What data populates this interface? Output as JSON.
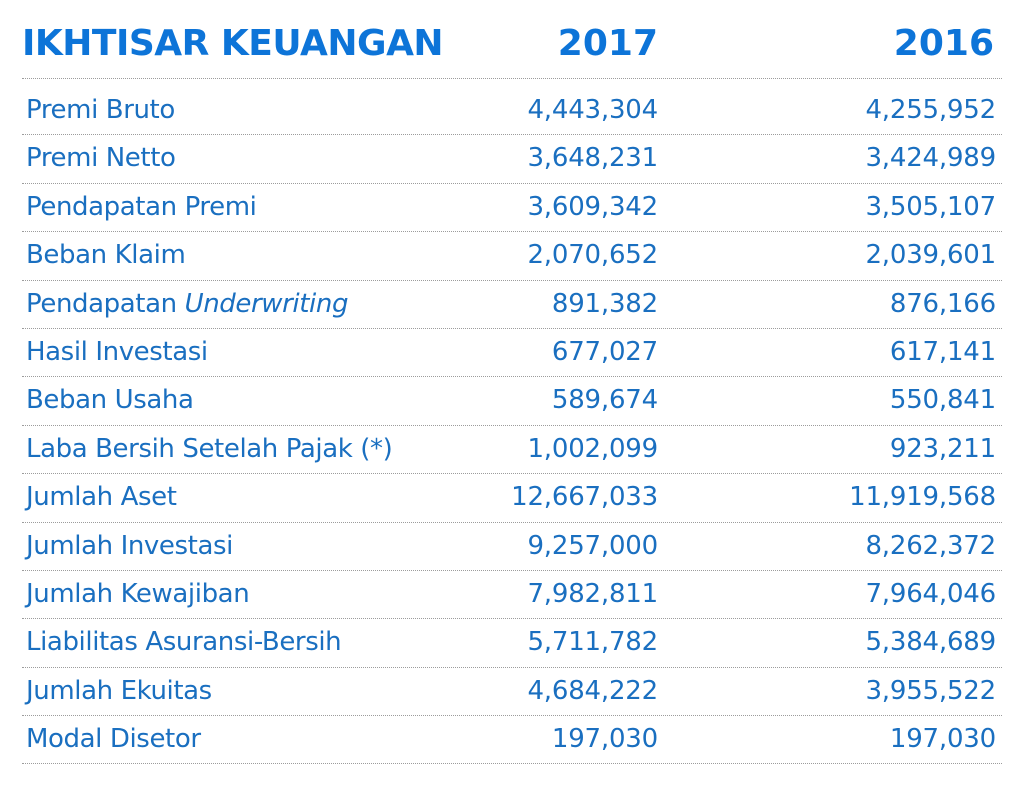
{
  "header": {
    "title": "IKHTISAR KEUANGAN",
    "year_1": "2017",
    "year_2": "2016"
  },
  "rows": [
    {
      "label": "Premi Bruto",
      "label_italic": "",
      "v2017": "4,443,304",
      "v2016": "4,255,952"
    },
    {
      "label": "Premi Netto",
      "label_italic": "",
      "v2017": "3,648,231",
      "v2016": "3,424,989"
    },
    {
      "label": "Pendapatan Premi",
      "label_italic": "",
      "v2017": "3,609,342",
      "v2016": "3,505,107"
    },
    {
      "label": "Beban Klaim",
      "label_italic": "",
      "v2017": "2,070,652",
      "v2016": "2,039,601"
    },
    {
      "label": "Pendapatan ",
      "label_italic": "Underwriting",
      "v2017": "891,382",
      "v2016": "876,166"
    },
    {
      "label": "Hasil Investasi",
      "label_italic": "",
      "v2017": "677,027",
      "v2016": "617,141"
    },
    {
      "label": "Beban Usaha",
      "label_italic": "",
      "v2017": "589,674",
      "v2016": "550,841"
    },
    {
      "label": "Laba Bersih Setelah Pajak (*)",
      "label_italic": "",
      "v2017": "1,002,099",
      "v2016": "923,211"
    },
    {
      "label": "Jumlah Aset",
      "label_italic": "",
      "v2017": "12,667,033",
      "v2016": "11,919,568"
    },
    {
      "label": "Jumlah Investasi",
      "label_italic": "",
      "v2017": "9,257,000",
      "v2016": "8,262,372"
    },
    {
      "label": "Jumlah Kewajiban",
      "label_italic": "",
      "v2017": "7,982,811",
      "v2016": "7,964,046"
    },
    {
      "label": "Liabilitas Asuransi-Bersih",
      "label_italic": "",
      "v2017": "5,711,782",
      "v2016": "5,384,689"
    },
    {
      "label": "Jumlah Ekuitas",
      "label_italic": "",
      "v2017": "4,684,222",
      "v2016": "3,955,522"
    },
    {
      "label": "Modal Disetor",
      "label_italic": "",
      "v2017": "197,030",
      "v2016": "197,030"
    }
  ],
  "colors": {
    "text": "#1a6fc0",
    "heading": "#0d74d8",
    "divider": "#9c9c9c"
  }
}
